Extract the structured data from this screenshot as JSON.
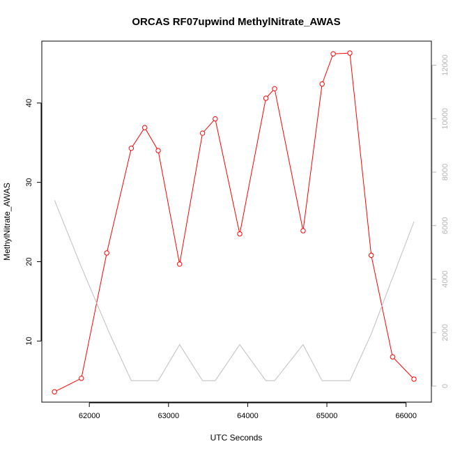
{
  "chart_data": {
    "type": "line",
    "title": "ORCAS RF07upwind MethylNitrate_AWAS",
    "xlabel": "UTC Seconds",
    "ylabel": "MethylNitrate_AWAS",
    "xlim": [
      61400,
      66320
    ],
    "ylim": [
      2.3,
      47.8
    ],
    "y2lim": [
      -600,
      12900
    ],
    "x_ticks": [
      62000,
      63000,
      64000,
      65000,
      66000
    ],
    "y_ticks": [
      10,
      20,
      30,
      40
    ],
    "y2_ticks": [
      0,
      2000,
      4000,
      6000,
      8000,
      10000,
      12000
    ],
    "grid": false,
    "series": [
      {
        "axis": "left",
        "color": "#ff0000",
        "marker": "open-circle",
        "x": [
          61560,
          61900,
          62220,
          62530,
          62700,
          62870,
          63140,
          63430,
          63590,
          63900,
          64230,
          64340,
          64700,
          64940,
          65080,
          65290,
          65560,
          65830,
          66100
        ],
        "values": [
          3.6,
          5.3,
          21.1,
          34.3,
          36.9,
          34.0,
          19.7,
          36.2,
          38.0,
          23.5,
          40.6,
          41.8,
          23.9,
          42.4,
          46.2,
          46.3,
          20.8,
          8.0,
          5.2
        ]
      },
      {
        "axis": "right",
        "color": "#bebebe",
        "marker": "none",
        "x": [
          61560,
          61900,
          62250,
          62530,
          62700,
          62870,
          63140,
          63430,
          63590,
          63900,
          64230,
          64340,
          64700,
          64940,
          65080,
          65290,
          65560,
          65830,
          66100
        ],
        "values": [
          6950,
          4450,
          2000,
          200,
          200,
          200,
          1550,
          200,
          200,
          1550,
          200,
          200,
          1550,
          200,
          200,
          200,
          1950,
          4050,
          6150
        ]
      }
    ]
  }
}
